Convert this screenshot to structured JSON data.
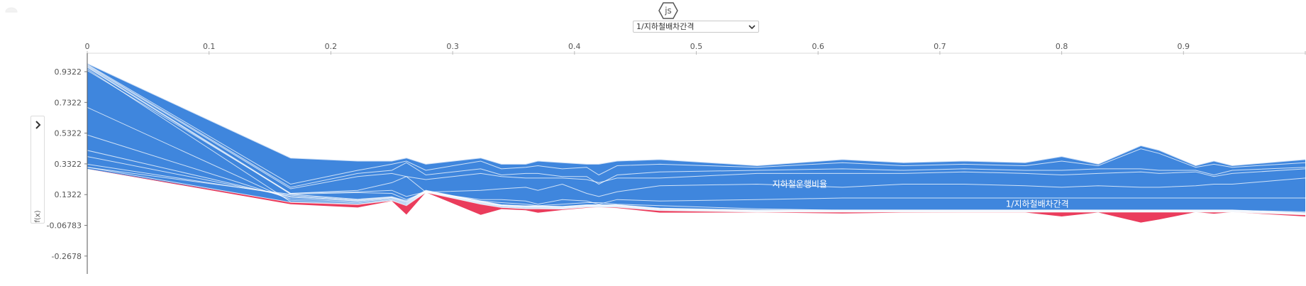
{
  "header": {
    "logo_text": "js"
  },
  "feature_select": {
    "selected": "1/지하철배차간격",
    "icon": "chevron-down-icon"
  },
  "sidebar": {
    "toggle_icon": "chevron-right-icon"
  },
  "colors": {
    "positive": "#ea3c5c",
    "negative": "#3f86dd",
    "separator": "#ffffff"
  },
  "chart_data": {
    "type": "area",
    "ylabel": "f(x)",
    "xlim": [
      0,
      1
    ],
    "ylim": [
      -0.3,
      1.0
    ],
    "x_ticks": [
      "0",
      "0.1",
      "0.2",
      "0.3",
      "0.4",
      "0.5",
      "0.6",
      "0.7",
      "0.8",
      "0.9",
      "1"
    ],
    "y_ticks": [
      "0.9322",
      "0.7322",
      "0.5322",
      "0.3322",
      "0.1322",
      "-0.06783",
      "-0.2678"
    ],
    "x": [
      0,
      0.167,
      0.222,
      0.25,
      0.262,
      0.278,
      0.323,
      0.34,
      0.36,
      0.37,
      0.39,
      0.41,
      0.42,
      0.435,
      0.47,
      0.55,
      0.62,
      0.67,
      0.72,
      0.77,
      0.8,
      0.83,
      0.865,
      0.88,
      0.91,
      0.925,
      0.94,
      1.0
    ],
    "upper_bound": [
      0.985,
      0.37,
      0.35,
      0.35,
      0.37,
      0.33,
      0.37,
      0.33,
      0.33,
      0.35,
      0.34,
      0.33,
      0.33,
      0.35,
      0.36,
      0.32,
      0.36,
      0.34,
      0.35,
      0.34,
      0.38,
      0.33,
      0.45,
      0.42,
      0.32,
      0.35,
      0.32,
      0.36
    ],
    "base_value": [
      0.3,
      0.082,
      0.068,
      0.093,
      0.06,
      0.147,
      0.07,
      0.048,
      0.04,
      0.04,
      0.038,
      0.05,
      0.05,
      0.05,
      0.028,
      0.018,
      0.018,
      0.018,
      0.018,
      0.018,
      0.018,
      0.018,
      0.018,
      0.018,
      0.018,
      0.018,
      0.018,
      0.0
    ],
    "lower_bound": [
      0.3,
      0.07,
      0.048,
      0.09,
      0.002,
      0.147,
      0.0,
      0.038,
      0.03,
      0.014,
      0.032,
      0.046,
      0.048,
      0.045,
      0.015,
      0.016,
      0.01,
      0.015,
      0.016,
      0.016,
      -0.01,
      0.016,
      -0.05,
      -0.03,
      0.018,
      0.008,
      0.018,
      -0.01
    ],
    "separators_positive": [
      [
        0.95,
        0.085,
        0.071,
        0.095,
        0.065,
        0.147,
        0.073,
        0.05,
        0.042,
        0.042,
        0.04,
        0.052,
        0.052,
        0.052,
        0.03,
        0.02,
        0.02,
        0.02,
        0.02,
        0.02,
        0.02,
        0.02,
        0.02,
        0.02,
        0.02,
        0.02,
        0.02,
        0.002
      ],
      [
        0.7,
        0.095,
        0.078,
        0.1,
        0.07,
        0.15,
        0.077,
        0.055,
        0.046,
        0.046,
        0.043,
        0.055,
        0.055,
        0.055,
        0.033,
        0.022,
        0.022,
        0.022,
        0.022,
        0.022,
        0.022,
        0.022,
        0.022,
        0.022,
        0.022,
        0.022,
        0.022,
        0.004
      ],
      [
        0.52,
        0.105,
        0.085,
        0.105,
        0.075,
        0.152,
        0.08,
        0.058,
        0.05,
        0.05,
        0.046,
        0.058,
        0.058,
        0.058,
        0.036,
        0.024,
        0.024,
        0.024,
        0.024,
        0.024,
        0.024,
        0.024,
        0.024,
        0.024,
        0.024,
        0.024,
        0.024,
        0.006
      ],
      [
        0.42,
        0.115,
        0.09,
        0.11,
        0.08,
        0.154,
        0.083,
        0.06,
        0.053,
        0.053,
        0.049,
        0.06,
        0.06,
        0.06,
        0.038,
        0.026,
        0.026,
        0.026,
        0.026,
        0.026,
        0.026,
        0.026,
        0.026,
        0.026,
        0.026,
        0.026,
        0.026,
        0.008
      ],
      [
        0.38,
        0.12,
        0.094,
        0.113,
        0.084,
        0.156,
        0.085,
        0.062,
        0.055,
        0.055,
        0.051,
        0.062,
        0.062,
        0.062,
        0.04,
        0.028,
        0.028,
        0.028,
        0.028,
        0.028,
        0.028,
        0.028,
        0.028,
        0.028,
        0.028,
        0.028,
        0.028,
        0.01
      ],
      [
        0.33,
        0.128,
        0.098,
        0.116,
        0.088,
        0.158,
        0.088,
        0.064,
        0.057,
        0.057,
        0.053,
        0.064,
        0.064,
        0.064,
        0.042,
        0.03,
        0.03,
        0.03,
        0.03,
        0.03,
        0.03,
        0.03,
        0.03,
        0.03,
        0.03,
        0.03,
        0.03,
        0.012
      ],
      [
        0.31,
        0.134,
        0.102,
        0.118,
        0.092,
        0.16,
        0.09,
        0.066,
        0.059,
        0.059,
        0.055,
        0.066,
        0.066,
        0.066,
        0.044,
        0.032,
        0.032,
        0.032,
        0.032,
        0.032,
        0.032,
        0.032,
        0.032,
        0.032,
        0.032,
        0.032,
        0.032,
        0.014
      ]
    ],
    "separators_negative": [
      [
        0.31,
        0.082,
        0.068,
        0.093,
        0.06,
        0.147,
        0.07,
        0.048,
        0.04,
        0.04,
        0.038,
        0.05,
        0.05,
        0.05,
        0.028,
        0.018,
        0.018,
        0.018,
        0.018,
        0.018,
        0.018,
        0.018,
        0.018,
        0.018,
        0.018,
        0.018,
        0.018,
        0.0
      ],
      [
        0.94,
        0.14,
        0.15,
        0.16,
        0.12,
        0.15,
        0.09,
        0.08,
        0.07,
        0.06,
        0.07,
        0.08,
        0.08,
        0.07,
        0.06,
        0.04,
        0.03,
        0.03,
        0.03,
        0.03,
        0.03,
        0.03,
        0.03,
        0.03,
        0.03,
        0.03,
        0.03,
        0.02
      ],
      [
        0.96,
        0.135,
        0.145,
        0.14,
        0.1,
        0.148,
        0.1,
        0.1,
        0.09,
        0.07,
        0.1,
        0.09,
        0.07,
        0.1,
        0.09,
        0.1,
        0.11,
        0.11,
        0.11,
        0.11,
        0.11,
        0.11,
        0.11,
        0.11,
        0.11,
        0.11,
        0.11,
        0.11
      ],
      [
        0.965,
        0.14,
        0.16,
        0.21,
        0.25,
        0.148,
        0.16,
        0.17,
        0.18,
        0.16,
        0.2,
        0.14,
        0.12,
        0.15,
        0.19,
        0.2,
        0.18,
        0.2,
        0.2,
        0.19,
        0.18,
        0.19,
        0.18,
        0.18,
        0.19,
        0.2,
        0.2,
        0.24
      ],
      [
        0.97,
        0.17,
        0.25,
        0.27,
        0.25,
        0.23,
        0.27,
        0.25,
        0.24,
        0.24,
        0.24,
        0.23,
        0.21,
        0.24,
        0.24,
        0.27,
        0.27,
        0.27,
        0.28,
        0.27,
        0.26,
        0.27,
        0.28,
        0.27,
        0.28,
        0.25,
        0.27,
        0.3
      ],
      [
        0.975,
        0.18,
        0.27,
        0.29,
        0.34,
        0.26,
        0.3,
        0.26,
        0.27,
        0.27,
        0.25,
        0.25,
        0.2,
        0.26,
        0.28,
        0.29,
        0.3,
        0.29,
        0.3,
        0.29,
        0.29,
        0.3,
        0.3,
        0.29,
        0.29,
        0.26,
        0.29,
        0.31
      ],
      [
        0.98,
        0.2,
        0.29,
        0.33,
        0.35,
        0.29,
        0.35,
        0.3,
        0.31,
        0.32,
        0.3,
        0.31,
        0.26,
        0.32,
        0.33,
        0.31,
        0.34,
        0.32,
        0.33,
        0.32,
        0.35,
        0.32,
        0.43,
        0.4,
        0.31,
        0.33,
        0.31,
        0.34
      ]
    ],
    "labels": [
      {
        "text": "지하철운행비율",
        "x": 0.585,
        "y": 0.2
      },
      {
        "text": "1/지하철배차간격",
        "x": 0.78,
        "y": 0.07
      }
    ]
  }
}
